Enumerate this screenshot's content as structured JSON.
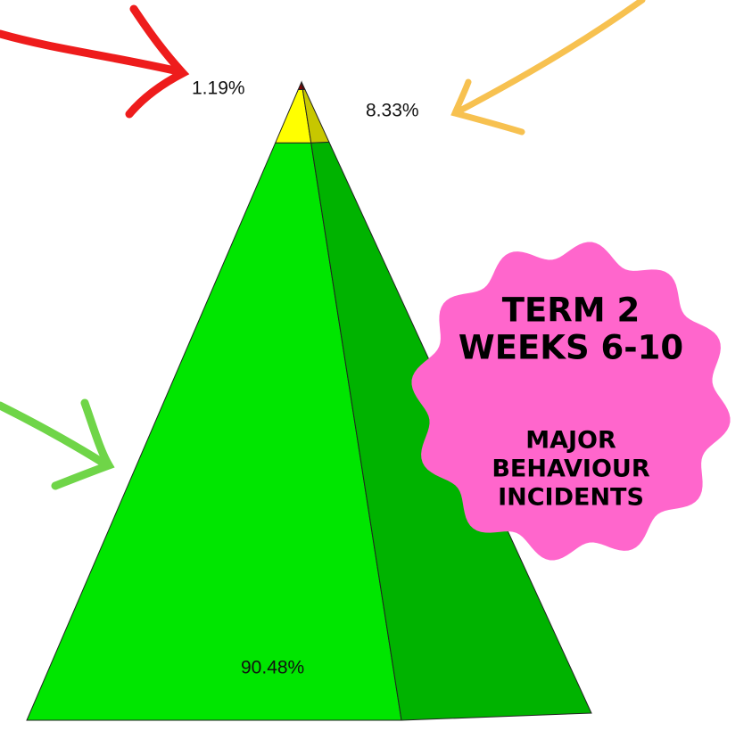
{
  "chart_data": {
    "type": "pyramid",
    "values": [
      90.48,
      8.33,
      1.19
    ],
    "value_labels": [
      "90.48%",
      "8.33%",
      "1.19%"
    ],
    "colors": [
      "#00e600",
      "#ffff00",
      "#8b0000"
    ],
    "annotations": [
      "TERM 2",
      "WEEKS 6-10",
      "MAJOR",
      "BEHAVIOUR",
      "INCIDENTS"
    ]
  }
}
